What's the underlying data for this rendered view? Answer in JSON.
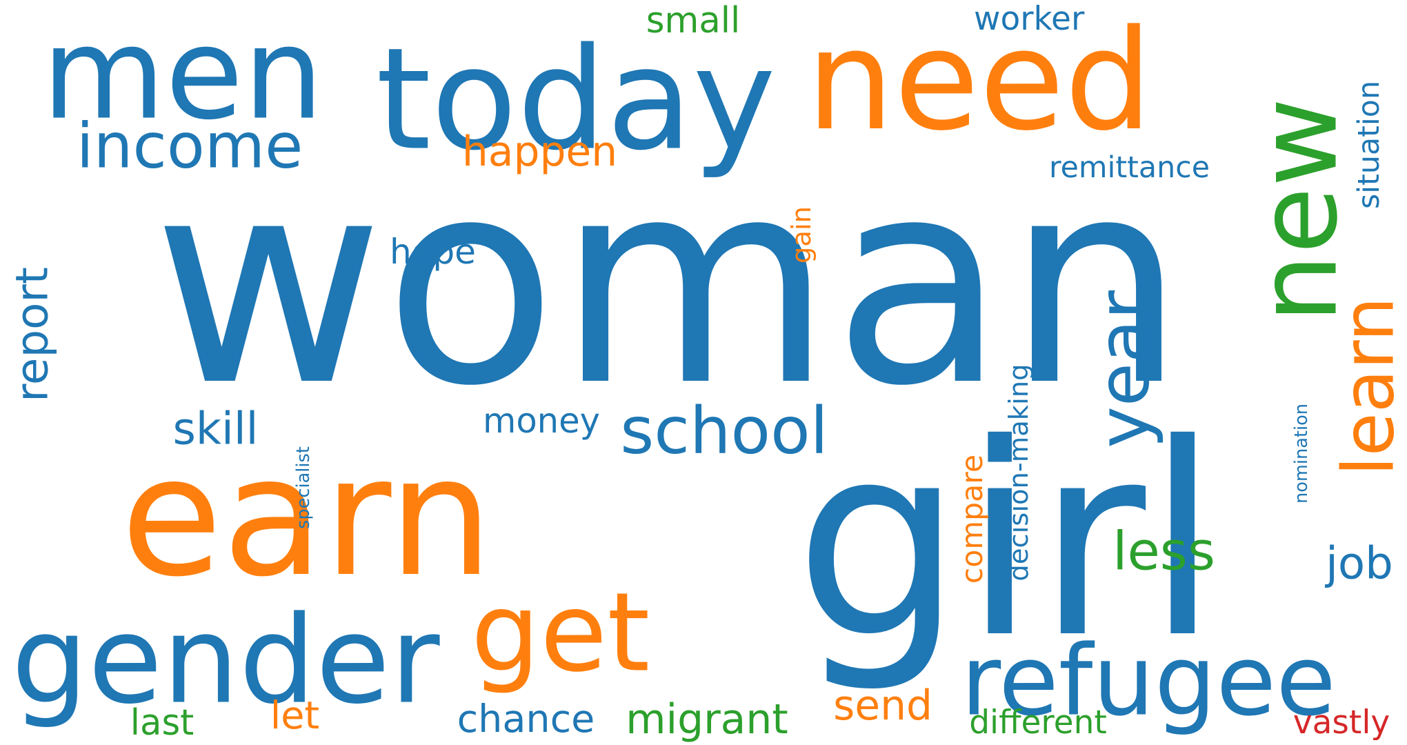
{
  "palette": {
    "blue": "#1f77b4",
    "orange": "#ff7f0e",
    "green": "#2ca02c",
    "red": "#d62728"
  },
  "words": [
    {
      "key": "woman",
      "text": "woman",
      "color": "blue"
    },
    {
      "key": "girl",
      "text": "girl",
      "color": "blue"
    },
    {
      "key": "earn",
      "text": "earn",
      "color": "orange"
    },
    {
      "key": "men",
      "text": "men",
      "color": "blue"
    },
    {
      "key": "need",
      "text": "need",
      "color": "orange"
    },
    {
      "key": "today",
      "text": "today",
      "color": "blue"
    },
    {
      "key": "new",
      "text": "new",
      "color": "green"
    },
    {
      "key": "gender",
      "text": "gender",
      "color": "blue"
    },
    {
      "key": "get",
      "text": "get",
      "color": "orange"
    },
    {
      "key": "refugee",
      "text": "refugee",
      "color": "blue"
    },
    {
      "key": "year",
      "text": "year",
      "color": "blue"
    },
    {
      "key": "learn",
      "text": "learn",
      "color": "orange"
    },
    {
      "key": "income",
      "text": "income",
      "color": "blue"
    },
    {
      "key": "school",
      "text": "school",
      "color": "blue"
    },
    {
      "key": "report",
      "text": "report",
      "color": "blue"
    },
    {
      "key": "less",
      "text": "less",
      "color": "green"
    },
    {
      "key": "happen",
      "text": "happen",
      "color": "orange"
    },
    {
      "key": "situation",
      "text": "situation",
      "color": "blue"
    },
    {
      "key": "remittance",
      "text": "remittance",
      "color": "blue"
    },
    {
      "key": "worker",
      "text": "worker",
      "color": "blue"
    },
    {
      "key": "small",
      "text": "small",
      "color": "green"
    },
    {
      "key": "hope",
      "text": "hope",
      "color": "blue"
    },
    {
      "key": "gain",
      "text": "gain",
      "color": "orange"
    },
    {
      "key": "skill",
      "text": "skill",
      "color": "blue"
    },
    {
      "key": "money",
      "text": "money",
      "color": "blue"
    },
    {
      "key": "decision-making",
      "text": "decision-making",
      "color": "blue"
    },
    {
      "key": "compare",
      "text": "compare",
      "color": "orange"
    },
    {
      "key": "nomination",
      "text": "nomination",
      "color": "blue"
    },
    {
      "key": "specialist",
      "text": "specialist",
      "color": "blue"
    },
    {
      "key": "job",
      "text": "job",
      "color": "blue"
    },
    {
      "key": "send",
      "text": "send",
      "color": "orange"
    },
    {
      "key": "chance",
      "text": "chance",
      "color": "blue"
    },
    {
      "key": "migrant",
      "text": "migrant",
      "color": "green"
    },
    {
      "key": "last",
      "text": "last",
      "color": "green"
    },
    {
      "key": "let",
      "text": "let",
      "color": "orange"
    },
    {
      "key": "different",
      "text": "different",
      "color": "green"
    },
    {
      "key": "vastly",
      "text": "vastly",
      "color": "red"
    }
  ]
}
